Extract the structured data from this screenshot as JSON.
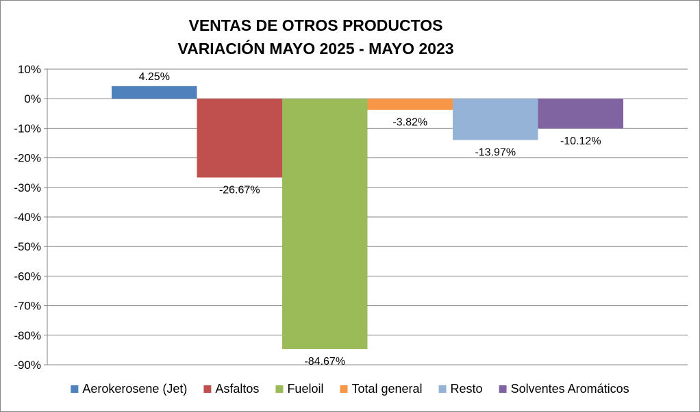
{
  "chart_data": {
    "type": "bar",
    "title": [
      "VENTAS DE OTROS PRODUCTOS",
      "VARIACIÓN MAYO 2025 - MAYO 2023"
    ],
    "xlabel": "",
    "ylabel": "",
    "ylim": [
      -90,
      10
    ],
    "yticks": [
      10,
      0,
      -10,
      -20,
      -30,
      -40,
      -50,
      -60,
      -70,
      -80,
      -90
    ],
    "yticklabels": [
      "10%",
      "0%",
      "-10%",
      "-20%",
      "-30%",
      "-40%",
      "-50%",
      "-60%",
      "-70%",
      "-80%",
      "-90%"
    ],
    "grid": true,
    "legend_position": "bottom",
    "series": [
      {
        "name": "Aerokerosene (Jet)",
        "value": 4.25,
        "label": "4.25%",
        "color": "#4F81BD"
      },
      {
        "name": "Asfaltos",
        "value": -26.67,
        "label": "-26.67%",
        "color": "#C0504D"
      },
      {
        "name": "Fueloil",
        "value": -84.67,
        "label": "-84.67%",
        "color": "#9BBB59"
      },
      {
        "name": "Total general",
        "value": -3.82,
        "label": "-3.82%",
        "color": "#F79646"
      },
      {
        "name": "Resto",
        "value": -13.97,
        "label": "-13.97%",
        "color": "#95B3D7"
      },
      {
        "name": "Solventes Aromáticos",
        "value": -10.12,
        "label": "-10.12%",
        "color": "#8064A2"
      }
    ]
  }
}
